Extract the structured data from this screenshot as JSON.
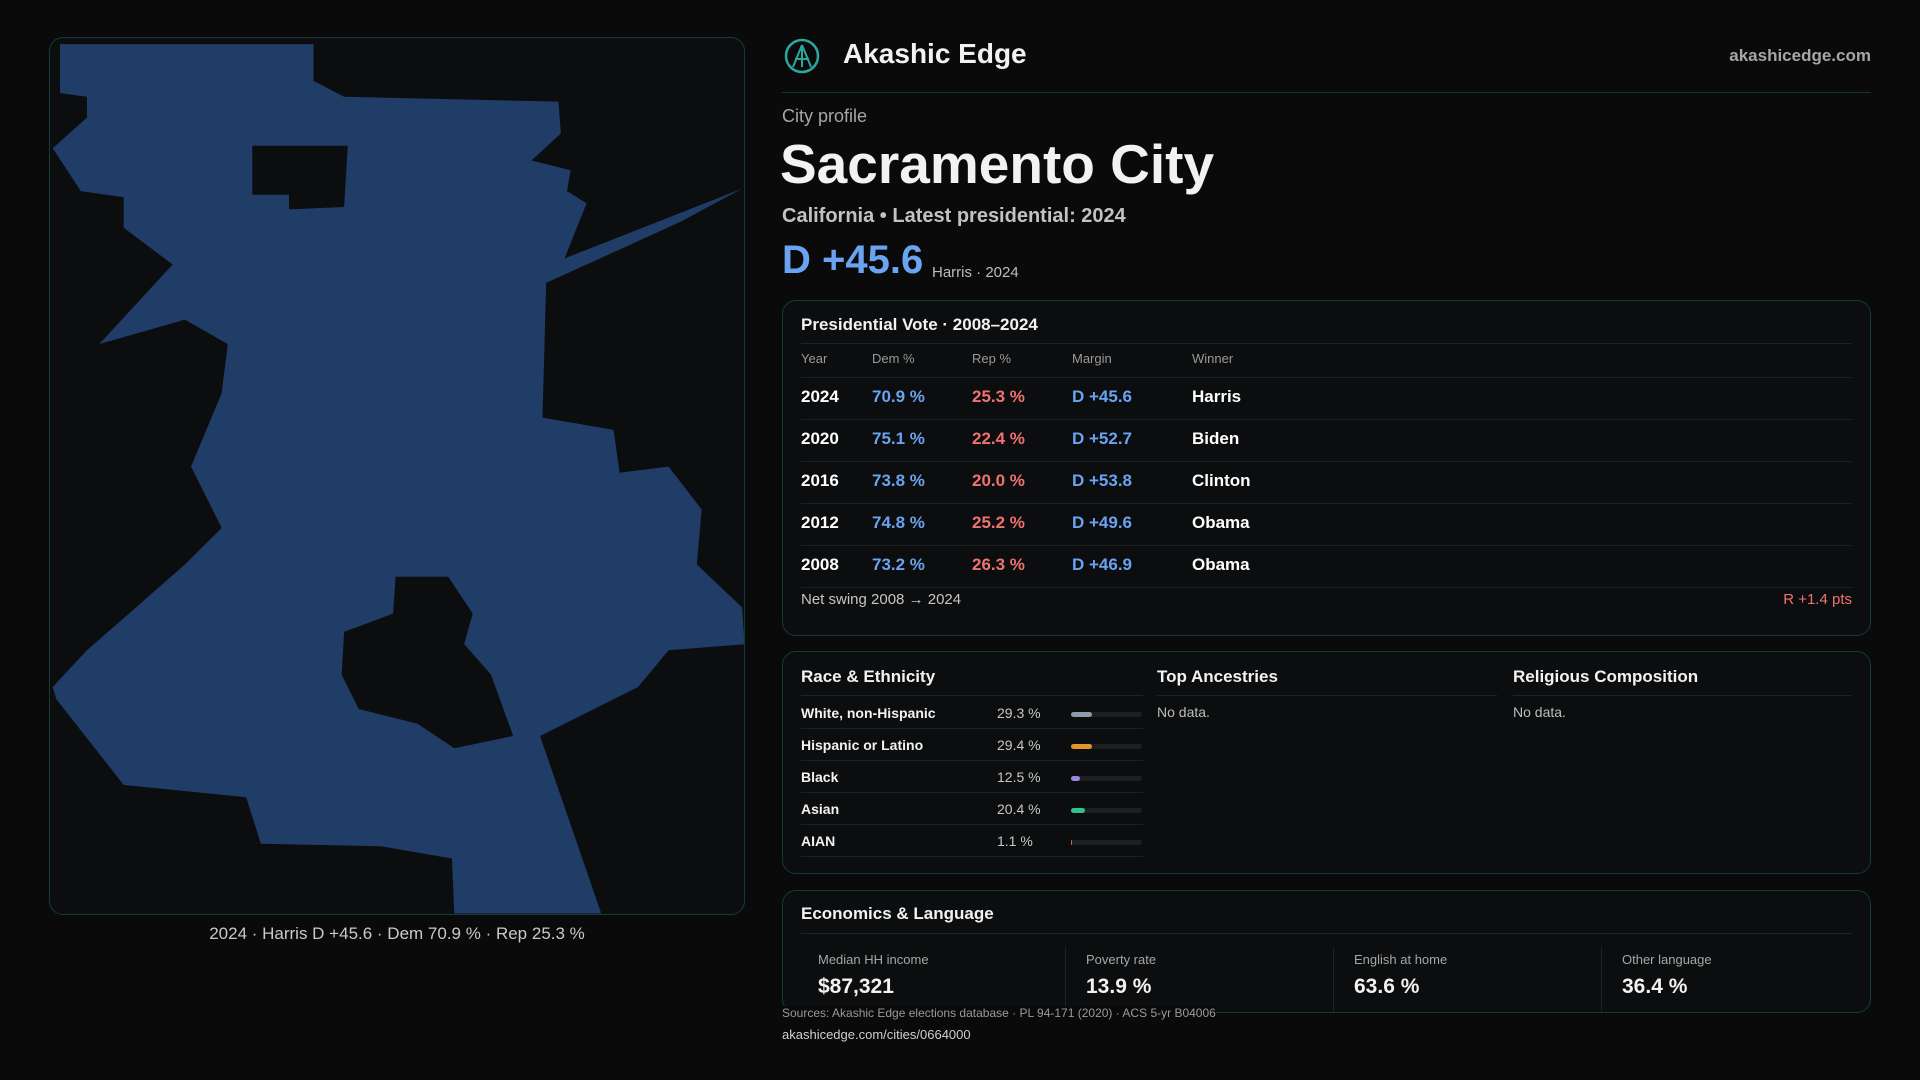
{
  "header": {
    "brand": "Akashic Edge",
    "site": "akashicedge.com"
  },
  "profile": {
    "eyebrow": "City profile",
    "title": "Sacramento City",
    "subtitle": "California • Latest presidential: 2024",
    "margin": "D +45.6",
    "margin_note": "Harris · 2024"
  },
  "map": {
    "caption": "2024 · Harris D +45.6 · Dem 70.9 % · Rep 25.3 %"
  },
  "vote": {
    "title": "Presidential Vote · 2008–2024",
    "columns": [
      "Year",
      "Dem %",
      "Rep %",
      "Margin",
      "Winner"
    ],
    "rows": [
      [
        "2024",
        "70.9 %",
        "25.3 %",
        "D +45.6",
        "Harris"
      ],
      [
        "2020",
        "75.1 %",
        "22.4 %",
        "D +52.7",
        "Biden"
      ],
      [
        "2016",
        "73.8 %",
        "20.0 %",
        "D +53.8",
        "Clinton"
      ],
      [
        "2012",
        "74.8 %",
        "25.2 %",
        "D +49.6",
        "Obama"
      ],
      [
        "2008",
        "73.2 %",
        "26.3 %",
        "D +46.9",
        "Obama"
      ]
    ],
    "swing_label": "Net swing 2008 → 2024",
    "swing_value": "R +1.4 pts"
  },
  "race": {
    "title": "Race & Ethnicity",
    "rows": [
      {
        "label": "White, non-Hispanic",
        "value": 29.3,
        "value_label": "29.3 %",
        "color": "#8c9aaa"
      },
      {
        "label": "Hispanic or Latino",
        "value": 29.4,
        "value_label": "29.4 %",
        "color": "#e0962a"
      },
      {
        "label": "Black",
        "value": 12.5,
        "value_label": "12.5 %",
        "color": "#9b86e6"
      },
      {
        "label": "Asian",
        "value": 20.4,
        "value_label": "20.4 %",
        "color": "#2fc38f"
      },
      {
        "label": "AIAN",
        "value": 1.1,
        "value_label": "1.1 %",
        "color": "#d9622f"
      }
    ]
  },
  "ancestry": {
    "title": "Top Ancestries",
    "note": "No data."
  },
  "religion": {
    "title": "Religious Composition",
    "note": "No data."
  },
  "economics": {
    "title": "Economics & Language",
    "items": [
      {
        "label": "Median HH income",
        "value": "$87,321"
      },
      {
        "label": "Poverty rate",
        "value": "13.9 %"
      },
      {
        "label": "English at home",
        "value": "63.6 %"
      },
      {
        "label": "Other language",
        "value": "36.4 %"
      }
    ]
  },
  "footer": {
    "sources": "Sources: Akashic Edge elections database · PL 94-171 (2020) · ACS 5-yr B04006",
    "url": "akashicedge.com/cities/0664000"
  }
}
